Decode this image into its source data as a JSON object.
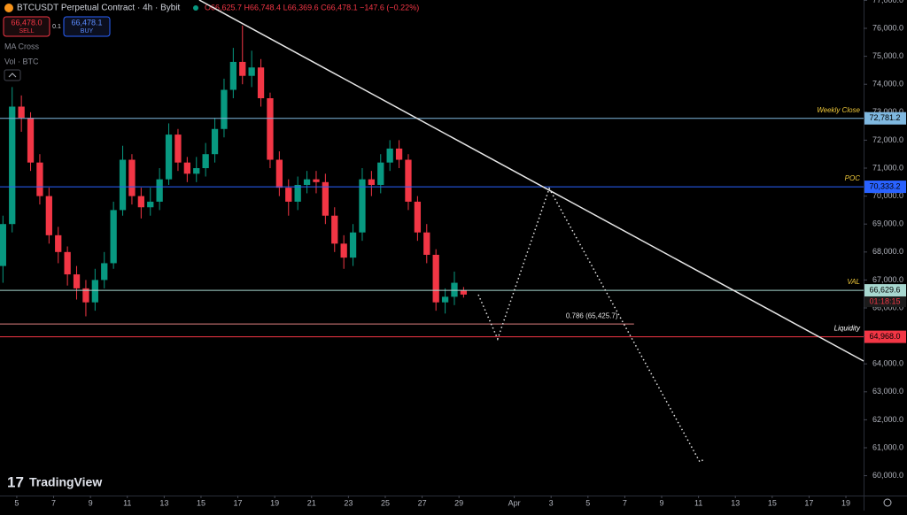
{
  "header": {
    "symbol": "BTCUSDT Perpetual Contract · 4h · Bybit",
    "ohlc": "O66,625.7 H66,748.4 L66,369.6 C66,478.1 −147.6 (−0.22%)",
    "sell_price": "66,478.0",
    "sell": "SELL",
    "spread": "0.1",
    "buy_price": "66,478.1",
    "buy": "BUY",
    "indicators": [
      "MA Cross",
      "Vol · BTC"
    ],
    "logo": "TradingView",
    "countdown": "01:18:15"
  },
  "chart_data": {
    "type": "candlestick",
    "up_color": "#089981",
    "down_color": "#f23645",
    "x": [
      -0.75,
      -0.25,
      0.25,
      0.75,
      1.25,
      1.75,
      2.25,
      2.75,
      3.25,
      3.75,
      4.25,
      4.75,
      5.25,
      5.75,
      6.25,
      6.75,
      7.25,
      7.75,
      8.25,
      8.75,
      9.25,
      9.75,
      10.25,
      10.75,
      11.25,
      11.75,
      12.25,
      12.75,
      13.25,
      13.75,
      14.25,
      14.75,
      15.25,
      15.75,
      16.25,
      16.75,
      17.25,
      17.75,
      18.25,
      18.75,
      19.25,
      19.75,
      20.25,
      20.75,
      21.25,
      21.75,
      22.25,
      22.75,
      23.25,
      23.75,
      24.25
    ],
    "open": [
      67500,
      69000,
      73200,
      72800,
      71200,
      70000,
      68600,
      68000,
      67200,
      66700,
      66200,
      67000,
      67600,
      69500,
      71300,
      70000,
      69600,
      69800,
      70600,
      72200,
      71200,
      70800,
      71000,
      71500,
      72400,
      73800,
      74800,
      74300,
      74600,
      73500,
      71300,
      70300,
      69800,
      70400,
      70600,
      70500,
      69300,
      68300,
      67800,
      68700,
      70600,
      70400,
      71200,
      71700,
      71300,
      69800,
      68700,
      67900,
      66200,
      66400,
      66625.7
    ],
    "high": [
      69300,
      73900,
      73600,
      73000,
      71500,
      70300,
      68900,
      68200,
      67500,
      67000,
      67400,
      68000,
      69800,
      71800,
      71500,
      70300,
      70300,
      71000,
      72600,
      72400,
      71400,
      71400,
      71900,
      72800,
      74200,
      75300,
      76100,
      75200,
      74900,
      73700,
      71600,
      70600,
      70700,
      70900,
      70900,
      70800,
      69600,
      68600,
      69000,
      71000,
      70900,
      71500,
      72000,
      72000,
      71500,
      70000,
      69000,
      68100,
      66700,
      67300,
      66748.4
    ],
    "low": [
      66900,
      68700,
      72300,
      70900,
      69700,
      68300,
      67600,
      66800,
      66300,
      65700,
      65900,
      66700,
      67400,
      69300,
      69700,
      69200,
      69300,
      69500,
      70400,
      70900,
      70500,
      70500,
      70700,
      71200,
      72100,
      73500,
      74000,
      73900,
      73200,
      71000,
      70000,
      69300,
      69500,
      70100,
      70100,
      69000,
      68000,
      67400,
      67500,
      68400,
      70000,
      70100,
      70900,
      71000,
      69500,
      68400,
      67600,
      65900,
      65800,
      66100,
      66369.6
    ],
    "close": [
      69000,
      73200,
      72800,
      71200,
      70000,
      68600,
      68000,
      67200,
      66700,
      66200,
      67000,
      67600,
      69500,
      71300,
      70000,
      69600,
      69800,
      70600,
      72200,
      71200,
      70800,
      71000,
      71500,
      72400,
      73800,
      74800,
      74300,
      74600,
      73500,
      71300,
      70300,
      69800,
      70400,
      70600,
      70500,
      69300,
      68300,
      67800,
      68700,
      70600,
      70400,
      71200,
      71700,
      71300,
      69800,
      68700,
      67900,
      66200,
      66400,
      66900,
      66478.1
    ],
    "xlim": [
      -0.91,
      45.96
    ],
    "ylim": [
      59291,
      77013
    ],
    "xticks": [
      {
        "value": 0,
        "label": "5"
      },
      {
        "value": 2,
        "label": "7"
      },
      {
        "value": 4,
        "label": "9"
      },
      {
        "value": 6,
        "label": "11"
      },
      {
        "value": 8,
        "label": "13"
      },
      {
        "value": 10,
        "label": "15"
      },
      {
        "value": 12,
        "label": "17"
      },
      {
        "value": 14,
        "label": "19"
      },
      {
        "value": 16,
        "label": "21"
      },
      {
        "value": 18,
        "label": "23"
      },
      {
        "value": 20,
        "label": "25"
      },
      {
        "value": 22,
        "label": "27"
      },
      {
        "value": 24,
        "label": "29"
      },
      {
        "value": 27,
        "label": "Apr"
      },
      {
        "value": 29,
        "label": "3"
      },
      {
        "value": 31,
        "label": "5"
      },
      {
        "value": 33,
        "label": "7"
      },
      {
        "value": 35,
        "label": "9"
      },
      {
        "value": 37,
        "label": "11"
      },
      {
        "value": 39,
        "label": "13"
      },
      {
        "value": 41,
        "label": "15"
      },
      {
        "value": 43,
        "label": "17"
      },
      {
        "value": 45,
        "label": "19"
      }
    ],
    "yticks": [
      {
        "value": 60000,
        "label": "60,000.0"
      },
      {
        "value": 61000,
        "label": "61,000.0"
      },
      {
        "value": 62000,
        "label": "62,000.0"
      },
      {
        "value": 63000,
        "label": "63,000.0"
      },
      {
        "value": 64000,
        "label": "64,000.0"
      },
      {
        "value": 65000,
        "label": "65,000.0"
      },
      {
        "value": 66000,
        "label": "66,000.0"
      },
      {
        "value": 67000,
        "label": "67,000.0"
      },
      {
        "value": 68000,
        "label": "68,000.0"
      },
      {
        "value": 69000,
        "label": "69,000.0"
      },
      {
        "value": 70000,
        "label": "70,000.0"
      },
      {
        "value": 71000,
        "label": "71,000.0"
      },
      {
        "value": 72000,
        "label": "72,000.0"
      },
      {
        "value": 73000,
        "label": "73,000.0"
      },
      {
        "value": 74000,
        "label": "74,000.0"
      },
      {
        "value": 75000,
        "label": "75,000.0"
      },
      {
        "value": 76000,
        "label": "76,000.0"
      },
      {
        "value": 77000,
        "label": "77,000.0"
      }
    ],
    "levels": [
      {
        "name": "Weekly Close",
        "value": 72781.2,
        "value_label": "72,781.2",
        "color": "#7fb8e0",
        "label_color": "#f0c93a"
      },
      {
        "name": "POC",
        "value": 70333.2,
        "value_label": "70,333.2",
        "color": "#2962ff",
        "label_color": "#f0c93a"
      },
      {
        "name": "VAL",
        "value": 66629.6,
        "value_label": "66,629.6",
        "color": "#a8d8d0",
        "label_color": "#f0c93a"
      },
      {
        "name": "0.786 (65,425.7)",
        "value": 65425.7,
        "color": "#e08080",
        "label_color": "#e0e0e0"
      },
      {
        "name": "Liquidity",
        "value": 64968,
        "value_label": "64,968.0",
        "color": "#f23645",
        "label_color": "#ffffff"
      }
    ],
    "trendline": {
      "x": [
        9.9,
        45.96
      ],
      "y": [
        77013,
        64101
      ]
    },
    "projection": {
      "x": [
        25.05,
        26.1,
        28.9,
        37.07,
        37.3
      ],
      "y": [
        66475,
        64892,
        70272,
        60494,
        60589
      ]
    }
  }
}
